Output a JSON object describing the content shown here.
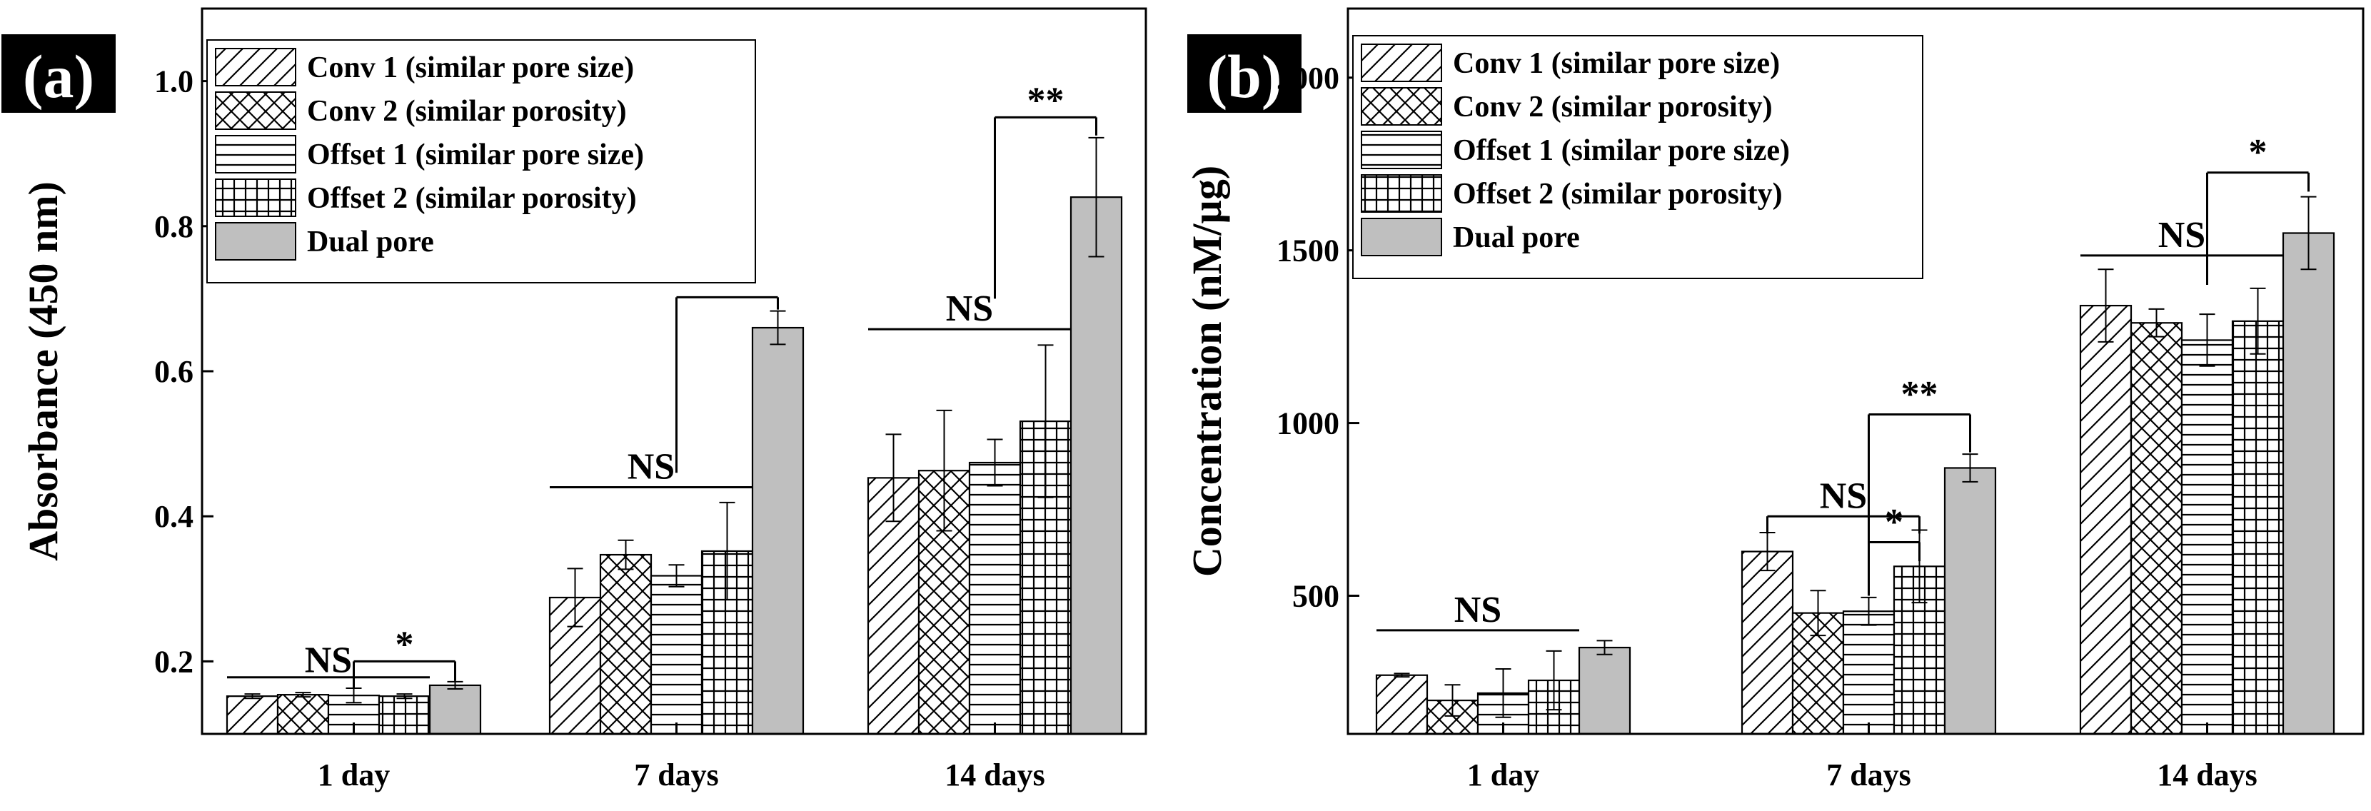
{
  "chart_data": [
    {
      "panel_label": "(a)",
      "type": "bar",
      "ylabel": "Absorbance (450 nm)",
      "xlabel": "",
      "categories": [
        "1 day",
        "7 days",
        "14 days"
      ],
      "ylim": [
        0.1,
        1.1
      ],
      "yticks": [
        "0.2",
        "0.4",
        "0.6",
        "0.8",
        "1.0"
      ],
      "ytick_values": [
        0.2,
        0.4,
        0.6,
        0.8,
        1.0
      ],
      "legend_position": "top-left",
      "series": [
        {
          "name": "Conv 1 (similar pore size)",
          "pattern": "diagonal",
          "values": [
            0.152,
            0.288,
            0.453
          ],
          "errors": [
            0.003,
            0.04,
            0.06
          ]
        },
        {
          "name": "Conv 2 (similar porosity)",
          "pattern": "crosshatch",
          "values": [
            0.154,
            0.347,
            0.463
          ],
          "errors": [
            0.003,
            0.02,
            0.083
          ]
        },
        {
          "name": "Offset 1 (similar pore size)",
          "pattern": "horizontal",
          "values": [
            0.153,
            0.318,
            0.474
          ],
          "errors": [
            0.01,
            0.015,
            0.032
          ]
        },
        {
          "name": "Offset 2 (similar porosity)",
          "pattern": "grid",
          "values": [
            0.152,
            0.352,
            0.531
          ],
          "errors": [
            0.003,
            0.067,
            0.105
          ]
        },
        {
          "name": "Dual pore",
          "pattern": "gray",
          "values": [
            0.167,
            0.66,
            0.84
          ],
          "errors": [
            0.005,
            0.023,
            0.082
          ]
        }
      ],
      "annotations": [
        {
          "text": "NS",
          "type": "line",
          "group": 0,
          "from": 0,
          "to": 3,
          "y": 0.178,
          "text_y": 0.183
        },
        {
          "text": "*",
          "type": "bracket",
          "group": 0,
          "from": 2,
          "to": 4,
          "y": 0.2,
          "drop_left": 0.162,
          "drop_right": 0.173,
          "text_y": 0.205
        },
        {
          "text": "NS",
          "type": "line",
          "group": 1,
          "from": 0,
          "to": 3,
          "y": 0.44,
          "text_y": 0.45
        },
        {
          "text": "**",
          "type": "bracket",
          "group": 1,
          "from": 2,
          "to": 4,
          "y": 0.702,
          "drop_left": 0.46,
          "drop_right": 0.685,
          "text_y": 0.707
        },
        {
          "text": "NS",
          "type": "line",
          "group": 2,
          "from": 0,
          "to": 3,
          "y": 0.658,
          "text_y": 0.668
        },
        {
          "text": "**",
          "type": "bracket",
          "group": 2,
          "from": 2,
          "to": 4,
          "y": 0.95,
          "drop_left": 0.7,
          "drop_right": 0.925,
          "text_y": 0.955
        }
      ]
    },
    {
      "panel_label": "(b)",
      "type": "bar",
      "ylabel": "Concentration (nM/µg)",
      "xlabel": "",
      "categories": [
        "1 day",
        "7 days",
        "14 days"
      ],
      "ylim": [
        100,
        2200
      ],
      "yticks": [
        "500",
        "1000",
        "1500",
        "2000"
      ],
      "ytick_values": [
        500,
        1000,
        1500,
        2000
      ],
      "legend_position": "top-left",
      "series": [
        {
          "name": "Conv 1 (similar pore size)",
          "pattern": "diagonal",
          "values": [
            270,
            628,
            1340
          ],
          "errors": [
            5,
            55,
            105
          ]
        },
        {
          "name": "Conv 2 (similar porosity)",
          "pattern": "crosshatch",
          "values": [
            197,
            450,
            1290
          ],
          "errors": [
            45,
            65,
            40
          ]
        },
        {
          "name": "Offset 1 (similar pore size)",
          "pattern": "horizontal",
          "values": [
            218,
            455,
            1240
          ],
          "errors": [
            70,
            40,
            75
          ]
        },
        {
          "name": "Offset 2 (similar porosity)",
          "pattern": "grid",
          "values": [
            255,
            585,
            1295
          ],
          "errors": [
            85,
            105,
            95
          ]
        },
        {
          "name": "Dual pore",
          "pattern": "gray",
          "values": [
            350,
            870,
            1550
          ],
          "errors": [
            20,
            40,
            105
          ]
        }
      ],
      "annotations": [
        {
          "text": "NS",
          "type": "line",
          "group": 0,
          "from": 0,
          "to": 3,
          "y": 400,
          "text_y": 420
        },
        {
          "text": "NS",
          "type": "bracket",
          "group": 1,
          "from": 0,
          "to": 3,
          "y": 730,
          "drop_left": 680,
          "drop_right": 680,
          "text_y": 750
        },
        {
          "text": "*",
          "type": "bracket",
          "group": 1,
          "from": 2,
          "to": 3,
          "y": 655,
          "drop_left": 500,
          "drop_right": 600,
          "text_y": 675
        },
        {
          "text": "**",
          "type": "bracket",
          "group": 1,
          "from": 2,
          "to": 4,
          "y": 1025,
          "drop_left": 500,
          "drop_right": 915,
          "text_y": 1045
        },
        {
          "text": "NS",
          "type": "line",
          "group": 2,
          "from": 0,
          "to": 3,
          "y": 1485,
          "text_y": 1505
        },
        {
          "text": "*",
          "type": "bracket",
          "group": 2,
          "from": 2,
          "to": 4,
          "y": 1725,
          "drop_left": 1400,
          "drop_right": 1670,
          "text_y": 1745
        }
      ]
    }
  ]
}
